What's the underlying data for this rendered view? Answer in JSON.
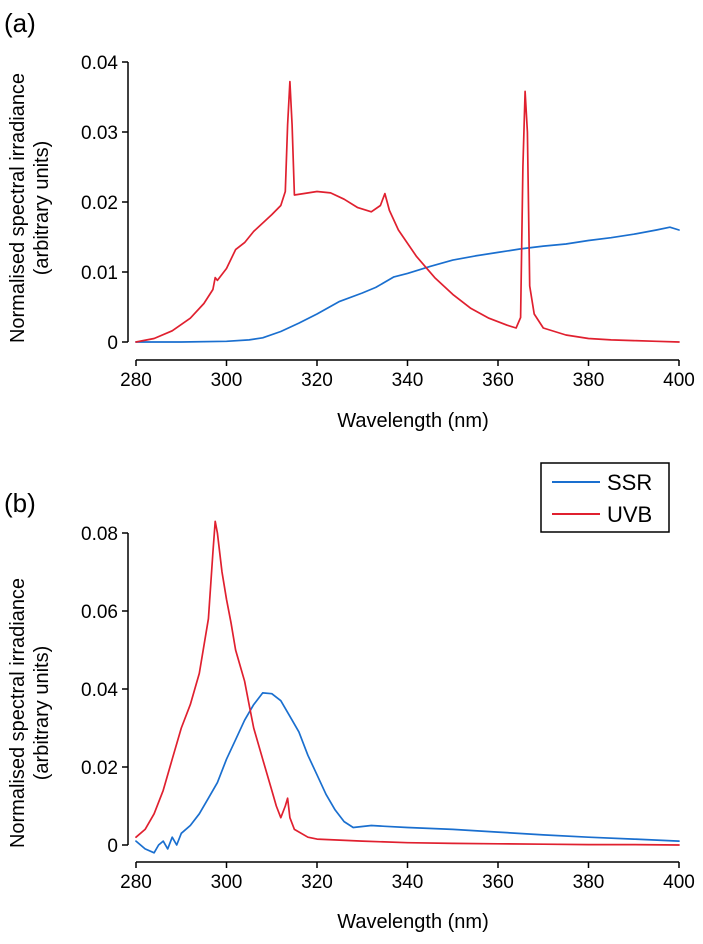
{
  "colors": {
    "ssr": "#1a6fcf",
    "uvb": "#e0202f"
  },
  "legend": [
    {
      "label": "SSR",
      "color": "#1a6fcf"
    },
    {
      "label": "UVB",
      "color": "#e0202f"
    }
  ],
  "chart_data": [
    {
      "panel_label": "(a)",
      "type": "line",
      "xlabel": "Wavelength (nm)",
      "ylabel": "Normalised spectral irradiance",
      "ylabel2": "(arbitrary units)",
      "xlim": [
        280,
        400
      ],
      "ylim": [
        0,
        0.04
      ],
      "xticks": [
        280,
        300,
        320,
        340,
        360,
        380,
        400
      ],
      "xtick_labels": [
        "280",
        "300",
        "320",
        "340",
        "360",
        "380",
        "400"
      ],
      "yticks": [
        0,
        0.01,
        0.02,
        0.03,
        0.04
      ],
      "ytick_labels": [
        "0",
        "0.01",
        "0.02",
        "0.03",
        "0.04"
      ],
      "series": [
        {
          "name": "SSR",
          "color": "#1a6fcf",
          "points": [
            [
              280,
              0
            ],
            [
              290,
              0
            ],
            [
              300,
              0.0001
            ],
            [
              305,
              0.0003
            ],
            [
              308,
              0.0006
            ],
            [
              312,
              0.0015
            ],
            [
              316,
              0.0027
            ],
            [
              320,
              0.004
            ],
            [
              325,
              0.0058
            ],
            [
              330,
              0.007
            ],
            [
              333,
              0.0078
            ],
            [
              337,
              0.0093
            ],
            [
              340,
              0.0098
            ],
            [
              345,
              0.0108
            ],
            [
              350,
              0.0117
            ],
            [
              355,
              0.0123
            ],
            [
              360,
              0.0128
            ],
            [
              365,
              0.0133
            ],
            [
              370,
              0.0137
            ],
            [
              375,
              0.014
            ],
            [
              380,
              0.0145
            ],
            [
              385,
              0.0149
            ],
            [
              390,
              0.0154
            ],
            [
              395,
              0.016
            ],
            [
              398,
              0.0164
            ],
            [
              400,
              0.016
            ]
          ]
        },
        {
          "name": "UVB",
          "color": "#e0202f",
          "points": [
            [
              280,
              0
            ],
            [
              284,
              0.0005
            ],
            [
              288,
              0.0016
            ],
            [
              292,
              0.0034
            ],
            [
              295,
              0.0055
            ],
            [
              297,
              0.0075
            ],
            [
              297.5,
              0.0092
            ],
            [
              298,
              0.0088
            ],
            [
              300,
              0.0105
            ],
            [
              302,
              0.0132
            ],
            [
              304,
              0.0142
            ],
            [
              306,
              0.0158
            ],
            [
              310,
              0.0182
            ],
            [
              312,
              0.0195
            ],
            [
              313,
              0.0215
            ],
            [
              313.5,
              0.031
            ],
            [
              314,
              0.0372
            ],
            [
              314.5,
              0.031
            ],
            [
              315,
              0.021
            ],
            [
              317,
              0.0212
            ],
            [
              320,
              0.0215
            ],
            [
              323,
              0.0213
            ],
            [
              326,
              0.0204
            ],
            [
              329,
              0.0192
            ],
            [
              332,
              0.0186
            ],
            [
              334,
              0.0195
            ],
            [
              335,
              0.0212
            ],
            [
              336,
              0.0188
            ],
            [
              338,
              0.016
            ],
            [
              342,
              0.0122
            ],
            [
              346,
              0.0092
            ],
            [
              350,
              0.0068
            ],
            [
              354,
              0.0048
            ],
            [
              358,
              0.0034
            ],
            [
              362,
              0.0024
            ],
            [
              364,
              0.002
            ],
            [
              365,
              0.0035
            ],
            [
              365.5,
              0.025
            ],
            [
              366,
              0.0358
            ],
            [
              366.5,
              0.03
            ],
            [
              367,
              0.008
            ],
            [
              368,
              0.004
            ],
            [
              370,
              0.002
            ],
            [
              375,
              0.001
            ],
            [
              380,
              0.0005
            ],
            [
              385,
              0.0003
            ],
            [
              390,
              0.0002
            ],
            [
              395,
              0.0001
            ],
            [
              400,
              0
            ]
          ]
        }
      ]
    },
    {
      "panel_label": "(b)",
      "type": "line",
      "xlabel": "Wavelength (nm)",
      "ylabel": "Normalised spectral irradiance",
      "ylabel2": "(arbitrary units)",
      "xlim": [
        280,
        400
      ],
      "ylim": [
        0,
        0.08
      ],
      "xticks": [
        280,
        300,
        320,
        340,
        360,
        380,
        400
      ],
      "xtick_labels": [
        "280",
        "300",
        "320",
        "340",
        "360",
        "380",
        "400"
      ],
      "yticks": [
        0,
        0.02,
        0.04,
        0.06,
        0.08
      ],
      "ytick_labels": [
        "0",
        "0.02",
        "0.04",
        "0.06",
        "0.08"
      ],
      "series": [
        {
          "name": "SSR",
          "color": "#1a6fcf",
          "points": [
            [
              280,
              0.001
            ],
            [
              282,
              -0.001
            ],
            [
              284,
              -0.002
            ],
            [
              285,
              0
            ],
            [
              286,
              0.001
            ],
            [
              287,
              -0.001
            ],
            [
              288,
              0.002
            ],
            [
              289,
              0
            ],
            [
              290,
              0.003
            ],
            [
              292,
              0.005
            ],
            [
              294,
              0.008
            ],
            [
              296,
              0.012
            ],
            [
              298,
              0.016
            ],
            [
              300,
              0.022
            ],
            [
              302,
              0.027
            ],
            [
              304,
              0.032
            ],
            [
              306,
              0.036
            ],
            [
              308,
              0.039
            ],
            [
              310,
              0.0388
            ],
            [
              312,
              0.037
            ],
            [
              314,
              0.033
            ],
            [
              316,
              0.029
            ],
            [
              318,
              0.023
            ],
            [
              320,
              0.018
            ],
            [
              322,
              0.013
            ],
            [
              324,
              0.009
            ],
            [
              326,
              0.006
            ],
            [
              328,
              0.0045
            ],
            [
              332,
              0.005
            ],
            [
              335,
              0.0048
            ],
            [
              340,
              0.0045
            ],
            [
              350,
              0.004
            ],
            [
              360,
              0.0033
            ],
            [
              370,
              0.0026
            ],
            [
              380,
              0.002
            ],
            [
              390,
              0.0015
            ],
            [
              400,
              0.001
            ]
          ]
        },
        {
          "name": "UVB",
          "color": "#e0202f",
          "points": [
            [
              280,
              0.002
            ],
            [
              282,
              0.004
            ],
            [
              284,
              0.008
            ],
            [
              286,
              0.014
            ],
            [
              288,
              0.022
            ],
            [
              290,
              0.03
            ],
            [
              292,
              0.036
            ],
            [
              294,
              0.044
            ],
            [
              296,
              0.058
            ],
            [
              297,
              0.075
            ],
            [
              297.5,
              0.083
            ],
            [
              298,
              0.08
            ],
            [
              299,
              0.07
            ],
            [
              300,
              0.063
            ],
            [
              301,
              0.057
            ],
            [
              302,
              0.05
            ],
            [
              303,
              0.046
            ],
            [
              304,
              0.042
            ],
            [
              305,
              0.036
            ],
            [
              306,
              0.03
            ],
            [
              308,
              0.022
            ],
            [
              310,
              0.014
            ],
            [
              311,
              0.01
            ],
            [
              312,
              0.007
            ],
            [
              313,
              0.01
            ],
            [
              313.5,
              0.012
            ],
            [
              314,
              0.007
            ],
            [
              315,
              0.004
            ],
            [
              318,
              0.002
            ],
            [
              320,
              0.0015
            ],
            [
              330,
              0.001
            ],
            [
              340,
              0.0006
            ],
            [
              350,
              0.0004
            ],
            [
              360,
              0.0003
            ],
            [
              370,
              0.0002
            ],
            [
              380,
              0.0001
            ],
            [
              390,
              0.0001
            ],
            [
              400,
              0
            ]
          ]
        }
      ]
    }
  ]
}
